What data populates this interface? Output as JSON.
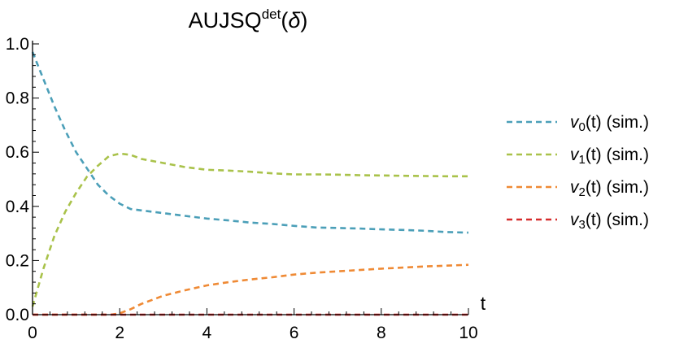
{
  "chart_data": {
    "type": "line",
    "title": {
      "main": "AUJSQ",
      "superscript": "det",
      "argument_open": "(",
      "argument": "δ",
      "argument_close": ")"
    },
    "xlabel": "t",
    "ylabel": "",
    "xlim": [
      0,
      10
    ],
    "ylim": [
      0,
      1.0
    ],
    "x_ticks": [
      0,
      2,
      4,
      6,
      8,
      10
    ],
    "x_tick_labels": [
      "0",
      "2",
      "4",
      "6",
      "8",
      "10"
    ],
    "y_ticks": [
      0,
      0.2,
      0.4,
      0.6,
      0.8,
      1.0
    ],
    "y_tick_labels": [
      "0.0",
      "0.2",
      "0.4",
      "0.6",
      "0.8",
      "1.0"
    ],
    "grid": false,
    "legend_position": "right",
    "line_style": "dashed",
    "series": [
      {
        "name": "v0(t) (sim.)",
        "legend_var": "v",
        "legend_sub": "0",
        "legend_rest": "(t) (sim.)",
        "color": "#4b9fb8",
        "x": [
          0,
          0.25,
          0.5,
          0.75,
          1.0,
          1.25,
          1.5,
          1.75,
          2.0,
          2.25,
          2.5,
          3.0,
          3.5,
          4.0,
          4.5,
          5.0,
          5.5,
          6.0,
          6.5,
          7.0,
          7.5,
          8.0,
          8.5,
          9.0,
          9.5,
          10.0
        ],
        "y": [
          0.97,
          0.87,
          0.77,
          0.68,
          0.6,
          0.54,
          0.48,
          0.44,
          0.41,
          0.39,
          0.385,
          0.375,
          0.365,
          0.355,
          0.348,
          0.34,
          0.335,
          0.328,
          0.322,
          0.32,
          0.318,
          0.315,
          0.313,
          0.31,
          0.305,
          0.303
        ]
      },
      {
        "name": "v1(t) (sim.)",
        "legend_var": "v",
        "legend_sub": "1",
        "legend_rest": "(t) (sim.)",
        "color": "#a9c24a",
        "x": [
          0,
          0.25,
          0.5,
          0.75,
          1.0,
          1.25,
          1.5,
          1.75,
          2.0,
          2.25,
          2.5,
          3.0,
          3.5,
          4.0,
          4.5,
          5.0,
          5.5,
          6.0,
          6.5,
          7.0,
          7.5,
          8.0,
          8.5,
          9.0,
          9.5,
          10.0
        ],
        "y": [
          0.03,
          0.17,
          0.29,
          0.38,
          0.45,
          0.51,
          0.55,
          0.585,
          0.595,
          0.59,
          0.575,
          0.56,
          0.545,
          0.535,
          0.532,
          0.528,
          0.522,
          0.518,
          0.518,
          0.517,
          0.515,
          0.514,
          0.513,
          0.512,
          0.511,
          0.511
        ]
      },
      {
        "name": "v2(t) (sim.)",
        "legend_var": "v",
        "legend_sub": "2",
        "legend_rest": "(t) (sim.)",
        "color": "#ef8a35",
        "x": [
          0,
          1.8,
          2.0,
          2.25,
          2.5,
          3.0,
          3.5,
          4.0,
          4.5,
          5.0,
          5.5,
          6.0,
          6.5,
          7.0,
          7.5,
          8.0,
          8.5,
          9.0,
          9.5,
          10.0
        ],
        "y": [
          0,
          0,
          0.005,
          0.02,
          0.04,
          0.07,
          0.09,
          0.108,
          0.12,
          0.13,
          0.138,
          0.148,
          0.155,
          0.16,
          0.165,
          0.17,
          0.174,
          0.178,
          0.181,
          0.184
        ]
      },
      {
        "name": "v3(t) (sim.)",
        "legend_var": "v",
        "legend_sub": "3",
        "legend_rest": "(t) (sim.)",
        "color": "#d62c2c",
        "x": [
          0,
          10
        ],
        "y": [
          0,
          0
        ]
      }
    ]
  }
}
